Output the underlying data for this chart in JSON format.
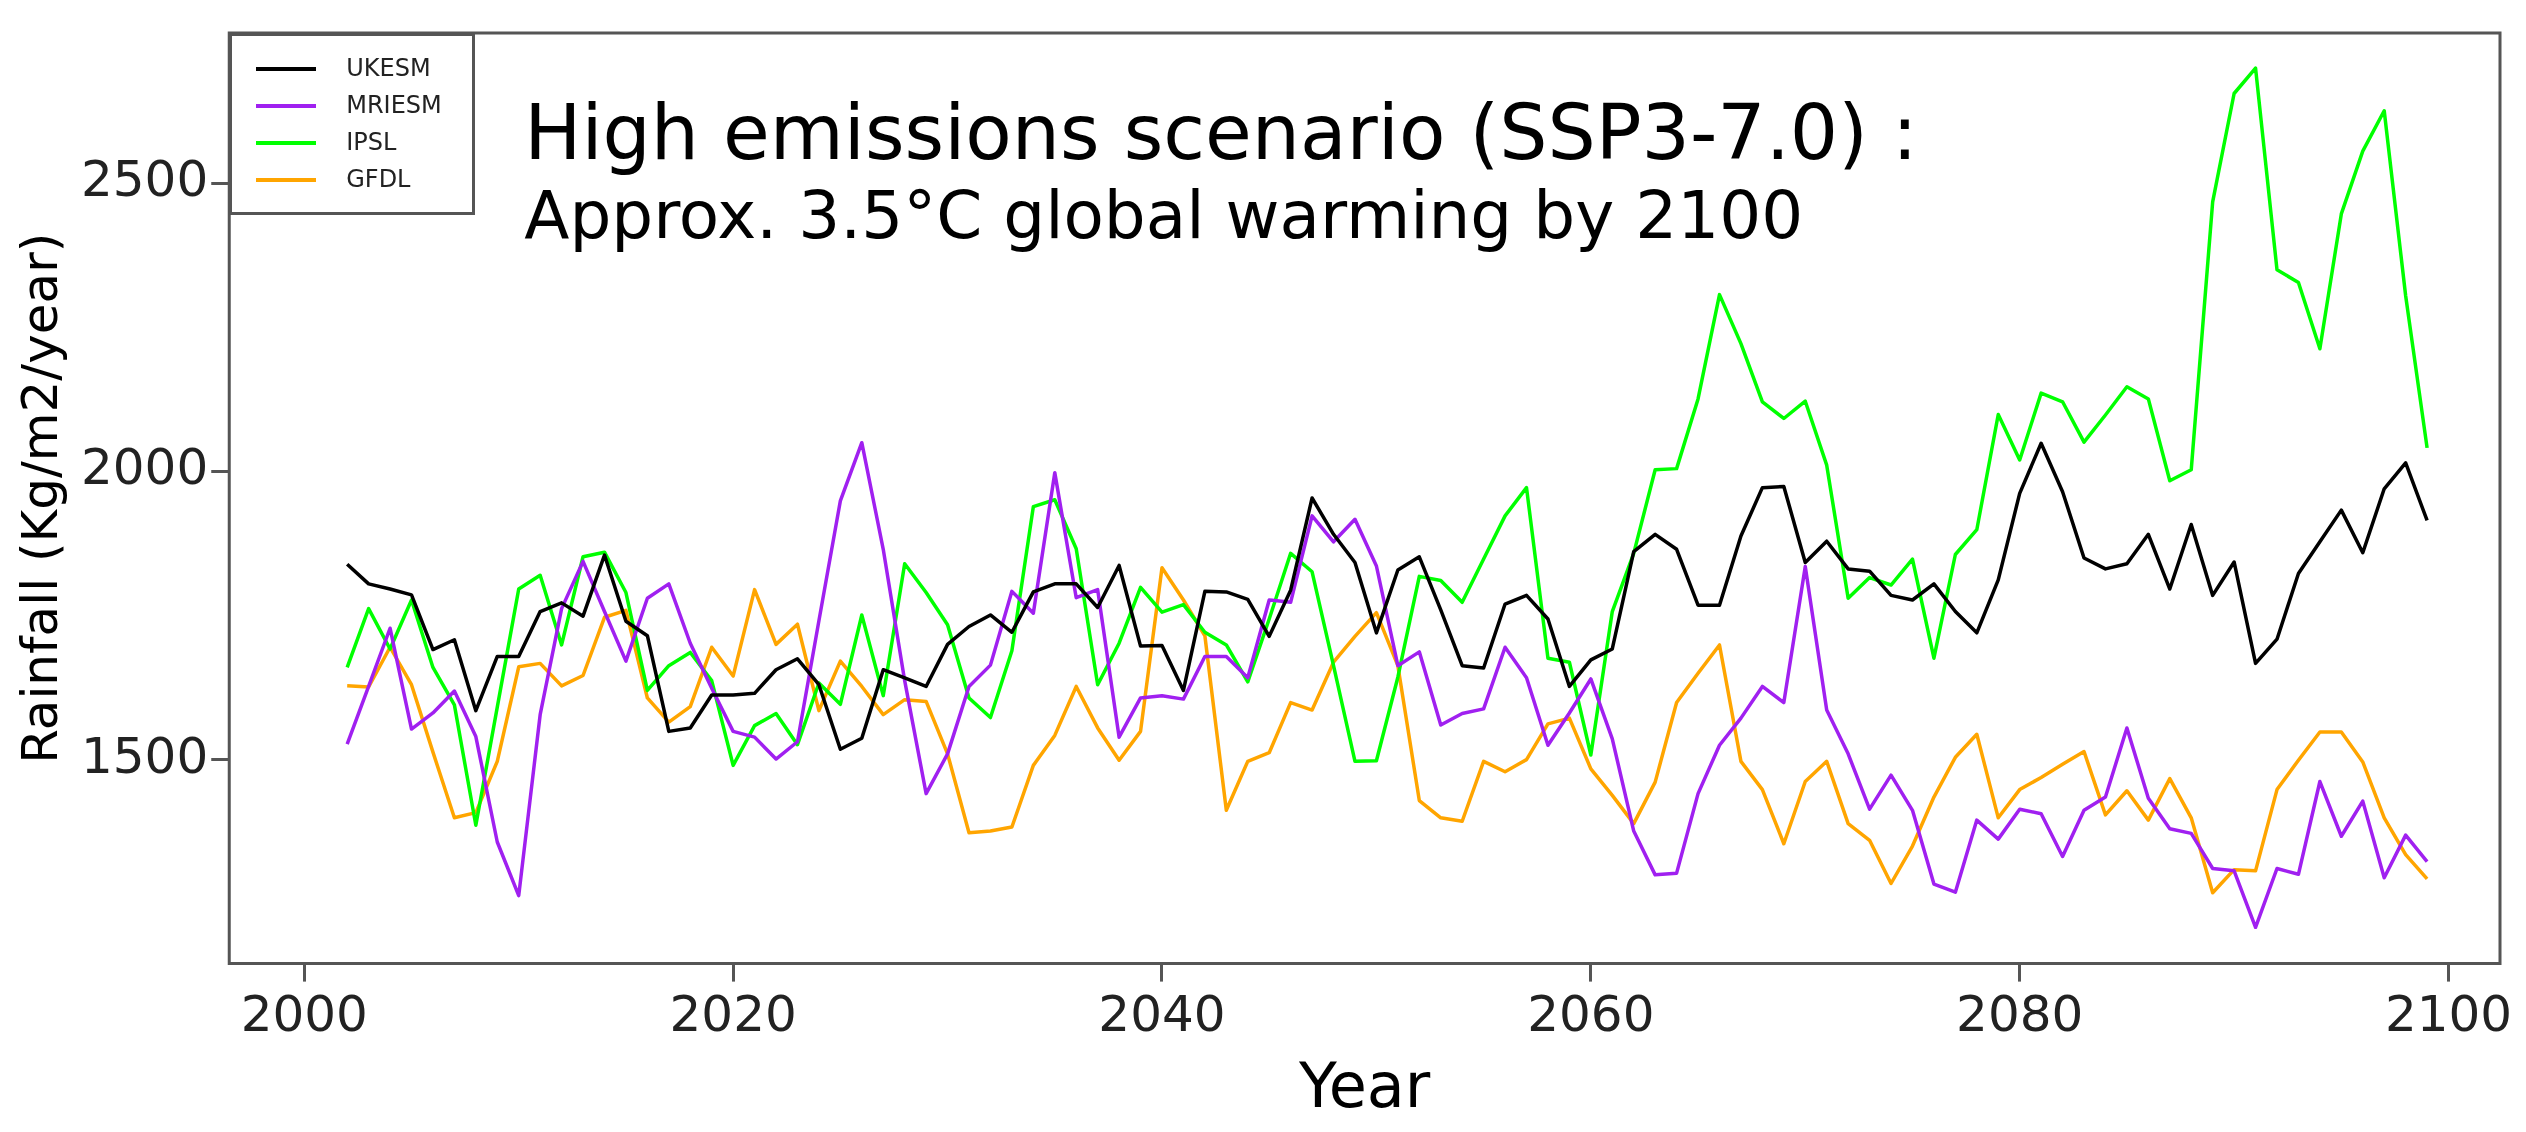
{
  "chart_data": {
    "type": "line",
    "xlabel": "Year",
    "ylabel": "Rainfall (Kg/m2/year)",
    "annotations": [
      "High emissions scenario (SSP3-7.0) :",
      "Approx. 3.5°C global warming by 2100"
    ],
    "x": [
      2002,
      2003,
      2004,
      2005,
      2006,
      2007,
      2008,
      2009,
      2010,
      2011,
      2012,
      2013,
      2014,
      2015,
      2016,
      2017,
      2018,
      2019,
      2020,
      2021,
      2022,
      2023,
      2024,
      2025,
      2026,
      2027,
      2028,
      2029,
      2030,
      2031,
      2032,
      2033,
      2034,
      2035,
      2036,
      2037,
      2038,
      2039,
      2040,
      2041,
      2042,
      2043,
      2044,
      2045,
      2046,
      2047,
      2048,
      2049,
      2050,
      2051,
      2052,
      2053,
      2054,
      2055,
      2056,
      2057,
      2058,
      2059,
      2060,
      2061,
      2062,
      2063,
      2064,
      2065,
      2066,
      2067,
      2068,
      2069,
      2070,
      2071,
      2072,
      2073,
      2074,
      2075,
      2076,
      2077,
      2078,
      2079,
      2080,
      2081,
      2082,
      2083,
      2084,
      2085,
      2086,
      2087,
      2088,
      2089,
      2090,
      2091,
      2092,
      2093,
      2094,
      2095,
      2096,
      2097,
      2098,
      2099
    ],
    "series": [
      {
        "name": "UKESM",
        "color": "#000000",
        "values": [
          1839,
          1805,
          1796,
          1786,
          1691,
          1708,
          1585,
          1679,
          1679,
          1757,
          1772,
          1749,
          1855,
          1740,
          1715,
          1549,
          1555,
          1612,
          1612,
          1615,
          1656,
          1675,
          1630,
          1518,
          1537,
          1656,
          1642,
          1627,
          1700,
          1731,
          1751,
          1721,
          1791,
          1805,
          1805,
          1764,
          1837,
          1697,
          1698,
          1620,
          1792,
          1791,
          1778,
          1714,
          1794,
          1954,
          1891,
          1842,
          1720,
          1829,
          1852,
          1760,
          1663,
          1659,
          1770,
          1785,
          1744,
          1627,
          1673,
          1692,
          1861,
          1891,
          1865,
          1768,
          1768,
          1888,
          1972,
          1974,
          1842,
          1879,
          1831,
          1827,
          1785,
          1777,
          1805,
          1757,
          1720,
          1812,
          1962,
          2049,
          1965,
          1850,
          1831,
          1840,
          1891,
          1796,
          1908,
          1785,
          1843,
          1667,
          1709,
          1823,
          1878,
          1933,
          1859,
          1970,
          2015,
          1915
        ]
      },
      {
        "name": "MRIESM",
        "color": "#a020f0",
        "values": [
          1527,
          1627,
          1728,
          1553,
          1581,
          1619,
          1540,
          1357,
          1264,
          1578,
          1762,
          1844,
          1757,
          1671,
          1780,
          1805,
          1702,
          1624,
          1549,
          1539,
          1501,
          1531,
          1741,
          1949,
          2050,
          1865,
          1637,
          1441,
          1510,
          1627,
          1664,
          1792,
          1754,
          1998,
          1781,
          1795,
          1539,
          1607,
          1611,
          1605,
          1679,
          1679,
          1642,
          1777,
          1773,
          1923,
          1878,
          1917,
          1836,
          1663,
          1687,
          1560,
          1580,
          1588,
          1695,
          1642,
          1525,
          1581,
          1640,
          1536,
          1376,
          1300,
          1303,
          1441,
          1525,
          1572,
          1627,
          1599,
          1835,
          1586,
          1510,
          1414,
          1473,
          1412,
          1284,
          1270,
          1395,
          1362,
          1414,
          1406,
          1332,
          1412,
          1435,
          1555,
          1433,
          1380,
          1372,
          1311,
          1307,
          1209,
          1311,
          1301,
          1462,
          1367,
          1428,
          1295,
          1369,
          1323
        ]
      },
      {
        "name": "IPSL",
        "color": "#00ff00",
        "values": [
          1660,
          1762,
          1692,
          1777,
          1660,
          1595,
          1386,
          1591,
          1796,
          1820,
          1699,
          1852,
          1860,
          1790,
          1620,
          1663,
          1686,
          1637,
          1490,
          1559,
          1580,
          1526,
          1633,
          1596,
          1751,
          1611,
          1840,
          1790,
          1734,
          1607,
          1573,
          1689,
          1939,
          1951,
          1866,
          1630,
          1702,
          1799,
          1756,
          1769,
          1721,
          1699,
          1635,
          1744,
          1858,
          1826,
          1663,
          1497,
          1498,
          1643,
          1818,
          1811,
          1773,
          1848,
          1923,
          1972,
          1676,
          1669,
          1508,
          1757,
          1858,
          2003,
          2005,
          2126,
          2307,
          2222,
          2121,
          2092,
          2122,
          2011,
          1780,
          1816,
          1803,
          1848,
          1676,
          1856,
          1899,
          2099,
          2020,
          2136,
          2121,
          2051,
          2098,
          2147,
          2126,
          1984,
          2003,
          2468,
          2656,
          2700,
          2350,
          2328,
          2213,
          2447,
          2556,
          2626,
          2305,
          2041
        ]
      },
      {
        "name": "GFDL",
        "color": "#ffa500",
        "values": [
          1628,
          1626,
          1695,
          1630,
          1513,
          1399,
          1408,
          1497,
          1661,
          1667,
          1628,
          1646,
          1747,
          1759,
          1607,
          1565,
          1592,
          1695,
          1645,
          1795,
          1700,
          1735,
          1585,
          1671,
          1627,
          1578,
          1604,
          1601,
          1510,
          1373,
          1376,
          1383,
          1490,
          1542,
          1627,
          1555,
          1499,
          1549,
          1833,
          1777,
          1715,
          1412,
          1497,
          1512,
          1599,
          1586,
          1669,
          1714,
          1755,
          1663,
          1429,
          1399,
          1393,
          1497,
          1479,
          1500,
          1562,
          1572,
          1484,
          1438,
          1389,
          1461,
          1599,
          1650,
          1699,
          1497,
          1448,
          1354,
          1462,
          1497,
          1389,
          1360,
          1285,
          1350,
          1435,
          1504,
          1544,
          1399,
          1448,
          1469,
          1492,
          1514,
          1404,
          1446,
          1395,
          1467,
          1399,
          1269,
          1309,
          1307,
          1448,
          1499,
          1548,
          1548,
          1496,
          1399,
          1335,
          1293
        ]
      }
    ],
    "xlim": [
      1996.5,
      2102.4
    ],
    "xticks": [
      2000,
      2020,
      2040,
      2060,
      2080,
      2100
    ],
    "ylim": [
      1146,
      2761
    ],
    "yticks": [
      1500,
      2000,
      2500
    ],
    "legend": "top left",
    "grid": false,
    "marker": "none",
    "line_style": "solid"
  }
}
